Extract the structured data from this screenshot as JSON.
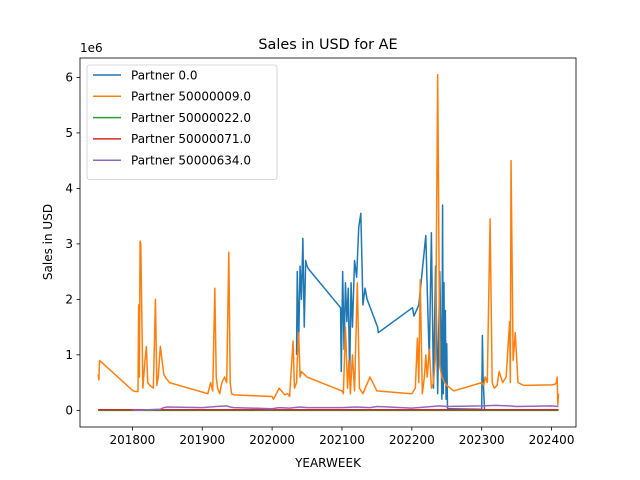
{
  "chart_data": {
    "type": "line",
    "title": "Sales in USD for AE",
    "xlabel": "YEARWEEK",
    "ylabel": "Sales in USD",
    "y_scale_label": "1e6",
    "xlim": [
      201725,
      202435
    ],
    "ylim": [
      -0.3,
      6.35
    ],
    "y_multiplier": 1000000,
    "x_ticks": [
      201800,
      201900,
      202000,
      202100,
      202200,
      202300,
      202400
    ],
    "y_ticks": [
      0,
      1,
      2,
      3,
      4,
      5,
      6
    ],
    "grid": false,
    "legend_position": "top-left",
    "series": [
      {
        "name": "Partner 0.0",
        "color": "#1f77b4",
        "x": [
          202035,
          202036,
          202038,
          202040,
          202042,
          202044,
          202046,
          202048,
          202050,
          202052,
          202098,
          202099,
          202101,
          202103,
          202105,
          202107,
          202109,
          202111,
          202113,
          202115,
          202118,
          202121,
          202124,
          202127,
          202130,
          202133,
          202136,
          202139,
          202142,
          202145,
          202148,
          202151,
          202152,
          202201,
          202203,
          202210,
          202220,
          202222,
          202225,
          202228,
          202231,
          202234,
          202237,
          202240,
          202243,
          202244,
          202245,
          202246,
          202247,
          202248,
          202249,
          202250,
          202251,
          202252,
          202253,
          202300,
          202301,
          202302,
          202303,
          202304
        ],
        "values": [
          1.0,
          2.5,
          1.2,
          2.6,
          2.0,
          3.1,
          1.5,
          2.7,
          2.6,
          2.55,
          1.85,
          0.7,
          2.5,
          1.1,
          2.3,
          1.6,
          2.2,
          0.6,
          2.3,
          1.5,
          2.7,
          2.4,
          3.3,
          3.55,
          1.9,
          2.2,
          2.0,
          1.9,
          1.8,
          1.7,
          1.6,
          1.5,
          1.4,
          1.85,
          1.7,
          1.9,
          3.15,
          2.2,
          0.9,
          3.2,
          0.4,
          2.6,
          0.3,
          2.5,
          0.2,
          3.7,
          0.3,
          2.3,
          0.5,
          1.8,
          0.2,
          1.2,
          0.05,
          0.02,
          0.03,
          0.02,
          1.35,
          0.6,
          0.3,
          0.02
        ]
      },
      {
        "name": "Partner 50000009.0",
        "color": "#ff7f0e",
        "x": [
          201751,
          201752,
          201753,
          201801,
          201805,
          201808,
          201809,
          201810,
          201811,
          201812,
          201815,
          201818,
          201820,
          201822,
          201825,
          201830,
          201833,
          201835,
          201837,
          201840,
          201845,
          201847,
          201848,
          201850,
          201852,
          201853,
          201908,
          201912,
          201915,
          201918,
          201920,
          201922,
          201925,
          201928,
          201932,
          201935,
          201938,
          201940,
          201942,
          201945,
          202000,
          202002,
          202010,
          202018,
          202022,
          202025,
          202030,
          202032,
          202035,
          202036,
          202038,
          202040,
          202042,
          202050,
          202100,
          202102,
          202105,
          202108,
          202110,
          202112,
          202115,
          202118,
          202122,
          202125,
          202130,
          202140,
          202150,
          202200,
          202205,
          202208,
          202210,
          202212,
          202215,
          202218,
          202220,
          202222,
          202225,
          202228,
          202231,
          202234,
          202237,
          202240,
          202243,
          202244,
          202245,
          202247,
          202250,
          202255,
          202260,
          202300,
          202303,
          202305,
          202308,
          202312,
          202315,
          202318,
          202322,
          202325,
          202330,
          202335,
          202340,
          202341,
          202342,
          202345,
          202348,
          202352,
          202360,
          202400,
          202405,
          202407,
          202408,
          202409,
          202410
        ],
        "values": [
          0.65,
          0.55,
          0.9,
          0.35,
          0.34,
          0.34,
          1.9,
          0.6,
          3.05,
          3.0,
          0.4,
          0.9,
          1.15,
          0.5,
          0.45,
          0.4,
          2.0,
          0.45,
          0.6,
          1.15,
          0.65,
          0.6,
          0.58,
          0.55,
          0.52,
          0.5,
          0.3,
          0.5,
          0.35,
          2.2,
          0.6,
          0.4,
          0.3,
          0.5,
          0.6,
          0.5,
          2.85,
          0.5,
          0.3,
          0.28,
          0.25,
          0.2,
          0.4,
          0.28,
          0.3,
          0.25,
          1.25,
          0.4,
          0.5,
          0.9,
          1.4,
          0.6,
          0.7,
          0.6,
          0.35,
          0.3,
          1.5,
          0.4,
          0.9,
          0.3,
          1.0,
          0.35,
          2.3,
          0.4,
          0.3,
          0.6,
          0.35,
          0.3,
          0.4,
          1.3,
          0.5,
          2.35,
          0.3,
          0.6,
          1.0,
          0.6,
          1.1,
          0.4,
          0.5,
          1.0,
          6.05,
          0.8,
          0.6,
          0.58,
          0.55,
          0.5,
          0.45,
          0.4,
          0.35,
          0.5,
          0.45,
          0.6,
          0.5,
          3.45,
          0.5,
          0.4,
          0.45,
          0.7,
          0.5,
          0.6,
          1.6,
          0.5,
          4.5,
          0.9,
          1.4,
          0.5,
          0.45,
          0.46,
          0.47,
          0.5,
          0.6,
          0.1,
          0.3
        ]
      },
      {
        "name": "Partner 50000022.0",
        "color": "#2ca02c",
        "x": [
          201751,
          202410
        ],
        "values": [
          0.0,
          0.0
        ]
      },
      {
        "name": "Partner 50000071.0",
        "color": "#d62728",
        "x": [
          201751,
          201800,
          201900,
          202000,
          202100,
          202200,
          202300,
          202410
        ],
        "values": [
          0.01,
          0.01,
          0.01,
          0.01,
          0.01,
          0.01,
          0.01,
          0.01
        ]
      },
      {
        "name": "Partner 50000634.0",
        "color": "#9467bd",
        "x": [
          201800,
          201840,
          201845,
          201850,
          201900,
          201920,
          201935,
          201940,
          201945,
          202000,
          202010,
          202025,
          202040,
          202050,
          202100,
          202120,
          202140,
          202150,
          202200,
          202220,
          202240,
          202250,
          202300,
          202320,
          202340,
          202350,
          202400,
          202410
        ],
        "values": [
          0.0,
          0.02,
          0.05,
          0.06,
          0.05,
          0.07,
          0.08,
          0.06,
          0.05,
          0.03,
          0.05,
          0.04,
          0.06,
          0.05,
          0.05,
          0.06,
          0.05,
          0.07,
          0.04,
          0.06,
          0.08,
          0.07,
          0.08,
          0.09,
          0.08,
          0.07,
          0.08,
          0.07
        ]
      }
    ]
  }
}
